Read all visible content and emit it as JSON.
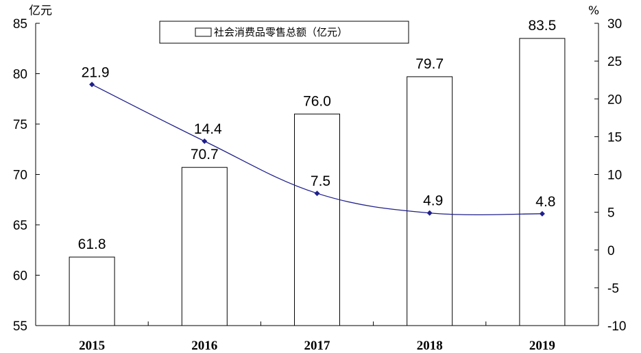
{
  "chart_data": {
    "type": "bar",
    "categories": [
      "2015",
      "2016",
      "2017",
      "2018",
      "2019"
    ],
    "series": [
      {
        "name": "社会消费品零售总额（亿元）",
        "type": "bar",
        "axis": "left",
        "values": [
          61.8,
          70.7,
          76.0,
          79.7,
          83.5
        ]
      },
      {
        "type": "line",
        "axis": "right",
        "values": [
          21.9,
          14.4,
          7.5,
          4.9,
          4.8
        ]
      }
    ],
    "bar_labels": [
      "61.8",
      "70.7",
      "76.0",
      "79.7",
      "83.5"
    ],
    "line_labels": [
      "21.9",
      "14.4",
      "7.5",
      "4.9",
      "4.8"
    ],
    "y_left": {
      "unit": "亿元",
      "ylim": [
        55,
        85
      ],
      "ticks": [
        "55",
        "60",
        "65",
        "70",
        "75",
        "80",
        "85"
      ]
    },
    "y_right": {
      "unit": "%",
      "ylim": [
        -10,
        30
      ],
      "ticks": [
        "-10",
        "-5",
        "0",
        "5",
        "10",
        "15",
        "20",
        "25",
        "30"
      ]
    },
    "legend": {
      "entry": "社会消费品零售总额（亿元）",
      "placement": "top-center"
    },
    "grid": false,
    "colors": {
      "bar_fill": "#ffffff",
      "bar_stroke": "#000000",
      "line": "#1f1f8c"
    }
  }
}
